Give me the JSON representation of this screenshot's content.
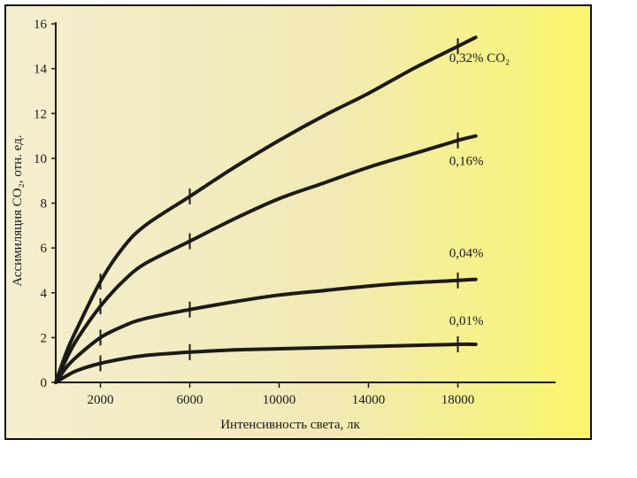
{
  "chart_data": {
    "type": "line",
    "title": "",
    "xlabel": "Интенсивность света, лк",
    "ylabel": "Ассимиляция  CO₂, отн. ед.",
    "x_ticks": [
      2000,
      6000,
      10000,
      14000,
      18000
    ],
    "y_ticks": [
      0,
      2,
      4,
      6,
      8,
      10,
      12,
      14,
      16
    ],
    "x_origin_label": "0",
    "xlim": [
      -200,
      20000
    ],
    "ylim": [
      0,
      16
    ],
    "grid": false,
    "legend": "none",
    "series": [
      {
        "name": "0,32% CO₂",
        "x": [
          0,
          500,
          1000,
          2000,
          3000,
          4000,
          6000,
          8000,
          10000,
          12000,
          14000,
          16000,
          18000,
          18800
        ],
        "y": [
          0,
          1.4,
          2.5,
          4.5,
          6.0,
          7.0,
          8.3,
          9.6,
          10.8,
          11.9,
          12.9,
          14.0,
          15.0,
          15.4
        ]
      },
      {
        "name": "0,16%",
        "x": [
          0,
          500,
          1000,
          2000,
          3000,
          4000,
          6000,
          8000,
          10000,
          12000,
          14000,
          16000,
          18000,
          18800
        ],
        "y": [
          0,
          1.1,
          2.0,
          3.4,
          4.5,
          5.3,
          6.3,
          7.3,
          8.2,
          8.9,
          9.6,
          10.2,
          10.8,
          11.0
        ]
      },
      {
        "name": "0,04%",
        "x": [
          0,
          500,
          1000,
          2000,
          3000,
          4000,
          6000,
          8000,
          10000,
          12000,
          14000,
          16000,
          18000,
          18800
        ],
        "y": [
          0,
          0.7,
          1.2,
          2.0,
          2.5,
          2.85,
          3.25,
          3.6,
          3.9,
          4.1,
          4.3,
          4.45,
          4.55,
          4.6
        ]
      },
      {
        "name": "0,01%",
        "x": [
          0,
          500,
          1000,
          2000,
          3000,
          4000,
          6000,
          8000,
          10000,
          12000,
          14000,
          16000,
          18000,
          18800
        ],
        "y": [
          0,
          0.3,
          0.55,
          0.85,
          1.05,
          1.2,
          1.35,
          1.45,
          1.5,
          1.55,
          1.6,
          1.65,
          1.7,
          1.7
        ]
      }
    ],
    "tick_mark_x": [
      2000,
      6000,
      18000
    ]
  },
  "colors": {
    "paper": "#f4f0c6",
    "paper_light": "#ece6a2",
    "paper_glow": "#fdfb74",
    "ink": "#1c1a16",
    "frame": "#111111"
  }
}
